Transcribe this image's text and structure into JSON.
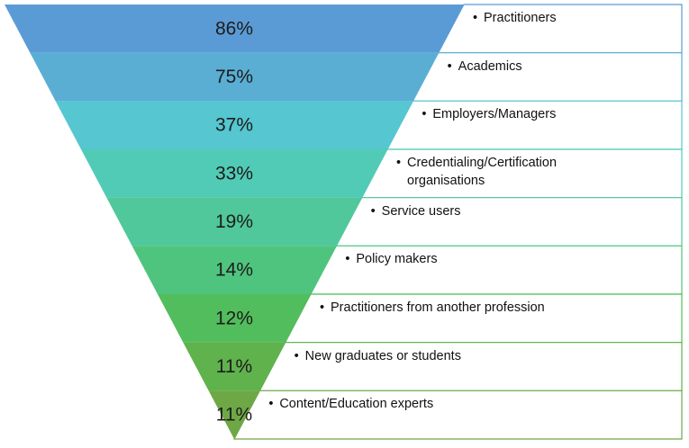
{
  "chart_data": {
    "type": "funnel",
    "categories": [
      "Practitioners",
      "Academics",
      "Employers/Managers",
      "Credentialing/Certification\norganisations",
      "Service users",
      "Policy makers",
      "Practitioners from another profession",
      "New graduates or students",
      "Content/Education experts"
    ],
    "values": [
      86,
      75,
      37,
      33,
      19,
      14,
      12,
      11,
      11
    ],
    "value_labels": [
      "86%",
      "75%",
      "37%",
      "33%",
      "19%",
      "14%",
      "12%",
      "11%",
      "11%"
    ],
    "colors": [
      "#5b9bd5",
      "#5aaed4",
      "#56c6d0",
      "#52cbb6",
      "#50c89b",
      "#4fc47e",
      "#52bd5c",
      "#60b24c",
      "#6ea846"
    ]
  }
}
